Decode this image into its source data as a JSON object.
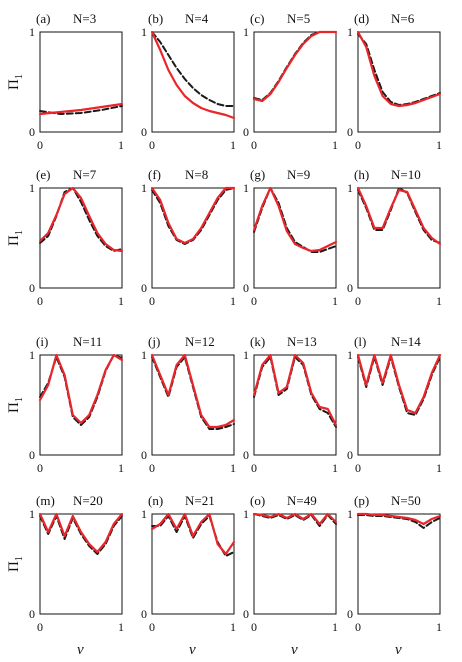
{
  "figure": {
    "ylabel_main": "Π",
    "ylabel_sub": "1",
    "xlabel": "ν",
    "tick_labels": {
      "x0": "0",
      "x1": "1",
      "y0": "0",
      "y1": "1"
    }
  },
  "colors": {
    "series_a": "#e8262b",
    "series_b": "#1a1a1a"
  },
  "chart_data": [
    {
      "type": "line",
      "panel": "(a)",
      "title": "N=3",
      "xlim": [
        0,
        1
      ],
      "ylim": [
        0,
        1
      ],
      "x": [
        0,
        0.25,
        0.5,
        0.75,
        1
      ],
      "series": [
        {
          "style": "solid red",
          "values": [
            0.18,
            0.2,
            0.22,
            0.25,
            0.28
          ]
        },
        {
          "style": "dashed black",
          "values": [
            0.21,
            0.18,
            0.19,
            0.22,
            0.26
          ]
        }
      ]
    },
    {
      "type": "line",
      "panel": "(b)",
      "title": "N=4",
      "xlim": [
        0,
        1
      ],
      "ylim": [
        0,
        1
      ],
      "x": [
        0,
        0.1,
        0.2,
        0.3,
        0.4,
        0.5,
        0.6,
        0.7,
        0.8,
        0.9,
        1
      ],
      "series": [
        {
          "style": "solid red",
          "values": [
            1.0,
            0.82,
            0.62,
            0.47,
            0.36,
            0.29,
            0.24,
            0.21,
            0.19,
            0.17,
            0.14
          ]
        },
        {
          "style": "dashed black",
          "values": [
            1.0,
            0.9,
            0.77,
            0.64,
            0.53,
            0.44,
            0.37,
            0.32,
            0.28,
            0.26,
            0.26
          ]
        }
      ]
    },
    {
      "type": "line",
      "panel": "(c)",
      "title": "N=5",
      "xlim": [
        0,
        1
      ],
      "ylim": [
        0,
        1
      ],
      "x": [
        0,
        0.1,
        0.2,
        0.3,
        0.4,
        0.5,
        0.6,
        0.7,
        0.8,
        0.9,
        1
      ],
      "series": [
        {
          "style": "solid red",
          "values": [
            0.33,
            0.31,
            0.38,
            0.5,
            0.64,
            0.77,
            0.88,
            0.96,
            1.0,
            1.0,
            1.0
          ]
        },
        {
          "style": "dashed black",
          "values": [
            0.34,
            0.32,
            0.39,
            0.51,
            0.65,
            0.78,
            0.89,
            0.97,
            1.0,
            1.0,
            1.0
          ]
        }
      ]
    },
    {
      "type": "line",
      "panel": "(d)",
      "title": "N=6",
      "xlim": [
        0,
        1
      ],
      "ylim": [
        0,
        1
      ],
      "x": [
        0,
        0.1,
        0.2,
        0.3,
        0.4,
        0.5,
        0.6,
        0.7,
        0.8,
        0.9,
        1
      ],
      "series": [
        {
          "style": "solid red",
          "values": [
            1.0,
            0.85,
            0.56,
            0.36,
            0.28,
            0.26,
            0.27,
            0.29,
            0.32,
            0.35,
            0.38
          ]
        },
        {
          "style": "dashed black",
          "values": [
            0.98,
            0.88,
            0.62,
            0.4,
            0.3,
            0.27,
            0.28,
            0.3,
            0.33,
            0.36,
            0.39
          ]
        }
      ]
    },
    {
      "type": "line",
      "panel": "(e)",
      "title": "N=7",
      "xlim": [
        0,
        1
      ],
      "ylim": [
        0,
        1
      ],
      "x": [
        0,
        0.1,
        0.2,
        0.3,
        0.4,
        0.5,
        0.6,
        0.7,
        0.8,
        0.9,
        1
      ],
      "series": [
        {
          "style": "solid red",
          "values": [
            0.47,
            0.55,
            0.73,
            0.94,
            1.0,
            0.9,
            0.72,
            0.55,
            0.44,
            0.38,
            0.37
          ]
        },
        {
          "style": "dashed black",
          "values": [
            0.45,
            0.52,
            0.72,
            0.96,
            1.0,
            0.86,
            0.68,
            0.52,
            0.42,
            0.37,
            0.39
          ]
        }
      ]
    },
    {
      "type": "line",
      "panel": "(f)",
      "title": "N=8",
      "xlim": [
        0,
        1
      ],
      "ylim": [
        0,
        1
      ],
      "x": [
        0,
        0.1,
        0.2,
        0.3,
        0.4,
        0.5,
        0.6,
        0.7,
        0.8,
        0.9,
        1
      ],
      "series": [
        {
          "style": "solid red",
          "values": [
            1.0,
            0.88,
            0.65,
            0.49,
            0.45,
            0.49,
            0.6,
            0.75,
            0.9,
            1.0,
            1.0
          ]
        },
        {
          "style": "dashed black",
          "values": [
            0.98,
            0.85,
            0.62,
            0.48,
            0.44,
            0.48,
            0.58,
            0.73,
            0.88,
            0.98,
            1.0
          ]
        }
      ]
    },
    {
      "type": "line",
      "panel": "(g)",
      "title": "N=9",
      "xlim": [
        0,
        1
      ],
      "ylim": [
        0,
        1
      ],
      "x": [
        0,
        0.1,
        0.2,
        0.3,
        0.4,
        0.5,
        0.6,
        0.7,
        0.8,
        0.9,
        1
      ],
      "series": [
        {
          "style": "solid red",
          "values": [
            0.58,
            0.82,
            1.0,
            0.82,
            0.57,
            0.44,
            0.4,
            0.37,
            0.38,
            0.42,
            0.46
          ]
        },
        {
          "style": "dashed black",
          "values": [
            0.56,
            0.8,
            1.0,
            0.85,
            0.6,
            0.46,
            0.41,
            0.36,
            0.36,
            0.39,
            0.42
          ]
        }
      ]
    },
    {
      "type": "line",
      "panel": "(h)",
      "title": "N=10",
      "xlim": [
        0,
        1
      ],
      "ylim": [
        0,
        1
      ],
      "x": [
        0,
        0.1,
        0.2,
        0.3,
        0.4,
        0.5,
        0.6,
        0.7,
        0.8,
        0.9,
        1
      ],
      "series": [
        {
          "style": "solid red",
          "values": [
            1.0,
            0.82,
            0.6,
            0.6,
            0.8,
            0.98,
            0.96,
            0.78,
            0.6,
            0.5,
            0.44
          ]
        },
        {
          "style": "dashed black",
          "values": [
            0.98,
            0.8,
            0.58,
            0.58,
            0.78,
            1.0,
            0.95,
            0.76,
            0.58,
            0.48,
            0.45
          ]
        }
      ]
    },
    {
      "type": "line",
      "panel": "(i)",
      "title": "N=11",
      "xlim": [
        0,
        1
      ],
      "ylim": [
        0,
        1
      ],
      "x": [
        0,
        0.1,
        0.2,
        0.3,
        0.4,
        0.5,
        0.6,
        0.7,
        0.8,
        0.9,
        1
      ],
      "series": [
        {
          "style": "solid red",
          "values": [
            0.55,
            0.7,
            1.0,
            0.8,
            0.4,
            0.32,
            0.4,
            0.6,
            0.85,
            1.0,
            0.95
          ]
        },
        {
          "style": "dashed black",
          "values": [
            0.58,
            0.72,
            0.98,
            0.78,
            0.38,
            0.3,
            0.38,
            0.58,
            0.84,
            1.0,
            0.97
          ]
        }
      ]
    },
    {
      "type": "line",
      "panel": "(j)",
      "title": "N=12",
      "xlim": [
        0,
        1
      ],
      "ylim": [
        0,
        1
      ],
      "x": [
        0,
        0.1,
        0.2,
        0.3,
        0.4,
        0.5,
        0.6,
        0.7,
        0.8,
        0.9,
        1
      ],
      "series": [
        {
          "style": "solid red",
          "values": [
            1.0,
            0.8,
            0.6,
            0.9,
            1.0,
            0.7,
            0.4,
            0.28,
            0.28,
            0.3,
            0.35
          ]
        },
        {
          "style": "dashed black",
          "values": [
            0.98,
            0.78,
            0.58,
            0.88,
            0.98,
            0.68,
            0.38,
            0.26,
            0.26,
            0.28,
            0.31
          ]
        }
      ]
    },
    {
      "type": "line",
      "panel": "(k)",
      "title": "N=13",
      "xlim": [
        0,
        1
      ],
      "ylim": [
        0,
        1
      ],
      "x": [
        0,
        0.1,
        0.2,
        0.3,
        0.4,
        0.5,
        0.6,
        0.7,
        0.8,
        0.9,
        1
      ],
      "series": [
        {
          "style": "solid red",
          "values": [
            0.6,
            0.9,
            1.0,
            0.62,
            0.68,
            1.0,
            0.92,
            0.62,
            0.48,
            0.46,
            0.3
          ]
        },
        {
          "style": "dashed black",
          "values": [
            0.58,
            0.88,
            0.98,
            0.6,
            0.66,
            0.98,
            0.9,
            0.6,
            0.46,
            0.42,
            0.28
          ]
        }
      ]
    },
    {
      "type": "line",
      "panel": "(l)",
      "title": "N=14",
      "xlim": [
        0,
        1
      ],
      "ylim": [
        0,
        1
      ],
      "x": [
        0,
        0.1,
        0.2,
        0.3,
        0.4,
        0.5,
        0.6,
        0.7,
        0.8,
        0.9,
        1
      ],
      "series": [
        {
          "style": "solid red",
          "values": [
            1.0,
            0.7,
            1.0,
            0.72,
            1.0,
            0.7,
            0.45,
            0.42,
            0.58,
            0.82,
            1.0
          ]
        },
        {
          "style": "dashed black",
          "values": [
            0.98,
            0.68,
            0.98,
            0.7,
            0.98,
            0.68,
            0.42,
            0.4,
            0.56,
            0.8,
            0.98
          ]
        }
      ]
    },
    {
      "type": "line",
      "panel": "(m)",
      "title": "N=20",
      "xlim": [
        0,
        1
      ],
      "ylim": [
        0,
        1
      ],
      "x": [
        0,
        0.1,
        0.2,
        0.3,
        0.4,
        0.5,
        0.6,
        0.7,
        0.8,
        0.9,
        1
      ],
      "series": [
        {
          "style": "solid red",
          "values": [
            1.0,
            0.82,
            1.0,
            0.78,
            0.98,
            0.82,
            0.7,
            0.62,
            0.72,
            0.9,
            1.0
          ]
        },
        {
          "style": "dashed black",
          "values": [
            0.98,
            0.8,
            0.98,
            0.75,
            0.96,
            0.8,
            0.68,
            0.6,
            0.7,
            0.88,
            0.98
          ]
        }
      ]
    },
    {
      "type": "line",
      "panel": "(n)",
      "title": "N=21",
      "xlim": [
        0,
        1
      ],
      "ylim": [
        0,
        1
      ],
      "x": [
        0,
        0.1,
        0.2,
        0.3,
        0.4,
        0.5,
        0.6,
        0.7,
        0.8,
        0.9,
        1
      ],
      "series": [
        {
          "style": "solid red",
          "values": [
            0.85,
            0.9,
            1.0,
            0.85,
            1.0,
            0.78,
            0.92,
            1.0,
            0.7,
            0.6,
            0.72
          ]
        },
        {
          "style": "dashed black",
          "values": [
            0.88,
            0.88,
            0.98,
            0.82,
            0.98,
            0.76,
            0.9,
            0.98,
            0.72,
            0.58,
            0.62
          ]
        }
      ]
    },
    {
      "type": "line",
      "panel": "(o)",
      "title": "N=49",
      "xlim": [
        0,
        1
      ],
      "ylim": [
        0,
        1
      ],
      "x": [
        0,
        0.1,
        0.2,
        0.3,
        0.4,
        0.5,
        0.6,
        0.7,
        0.8,
        0.9,
        1
      ],
      "series": [
        {
          "style": "solid red",
          "values": [
            1.0,
            0.99,
            0.97,
            1.0,
            0.96,
            1.0,
            0.95,
            1.0,
            0.9,
            1.0,
            0.92
          ]
        },
        {
          "style": "dashed black",
          "values": [
            1.0,
            0.98,
            0.96,
            0.99,
            0.95,
            0.99,
            0.94,
            0.99,
            0.88,
            0.99,
            0.9
          ]
        }
      ]
    },
    {
      "type": "line",
      "panel": "(p)",
      "title": "N=50",
      "xlim": [
        0,
        1
      ],
      "ylim": [
        0,
        1
      ],
      "x": [
        0,
        0.1,
        0.2,
        0.3,
        0.4,
        0.5,
        0.6,
        0.7,
        0.8,
        0.9,
        1
      ],
      "series": [
        {
          "style": "solid red",
          "values": [
            1.0,
            1.0,
            0.99,
            0.99,
            0.98,
            0.97,
            0.96,
            0.94,
            0.9,
            0.95,
            0.98
          ]
        },
        {
          "style": "dashed black",
          "values": [
            0.99,
            0.99,
            0.98,
            0.98,
            0.97,
            0.96,
            0.95,
            0.92,
            0.86,
            0.92,
            0.96
          ]
        }
      ]
    }
  ]
}
